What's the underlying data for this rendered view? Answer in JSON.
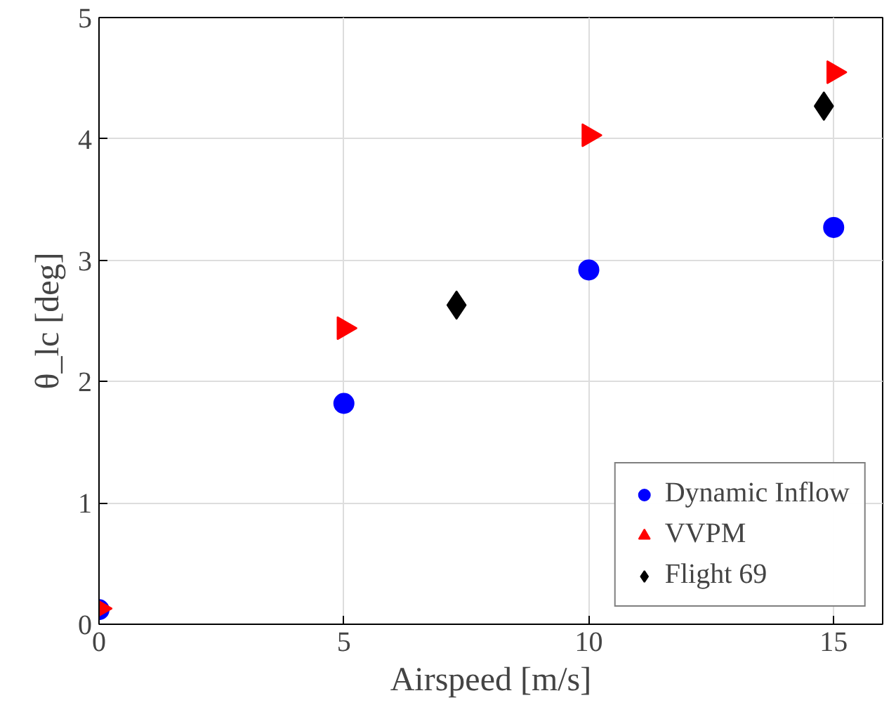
{
  "chart_data": {
    "type": "scatter",
    "xlabel": "Airspeed [m/s]",
    "ylabel": "θ_lc [deg]",
    "xlim": [
      0,
      16
    ],
    "xticks": [
      0,
      5,
      10,
      15
    ],
    "ylim": [
      0,
      5
    ],
    "yticks": [
      0,
      1,
      2,
      3,
      4,
      5
    ],
    "grid": true,
    "legend": "bottom right",
    "series": [
      {
        "name": "Dynamic Inflow",
        "color": "#0000ff",
        "marker": "circle",
        "x": [
          0,
          5,
          10,
          15
        ],
        "values": [
          0.12,
          1.82,
          2.92,
          3.27
        ]
      },
      {
        "name": "VVPM",
        "color": "#ff0000",
        "marker": "triangle",
        "x": [
          0,
          5,
          10,
          15
        ],
        "values": [
          0.13,
          2.44,
          4.03,
          4.55
        ]
      },
      {
        "name": "Flight 69",
        "color": "#000000",
        "marker": "diamond",
        "x": [
          7.3,
          14.8
        ],
        "values": [
          2.63,
          4.27
        ]
      }
    ]
  }
}
